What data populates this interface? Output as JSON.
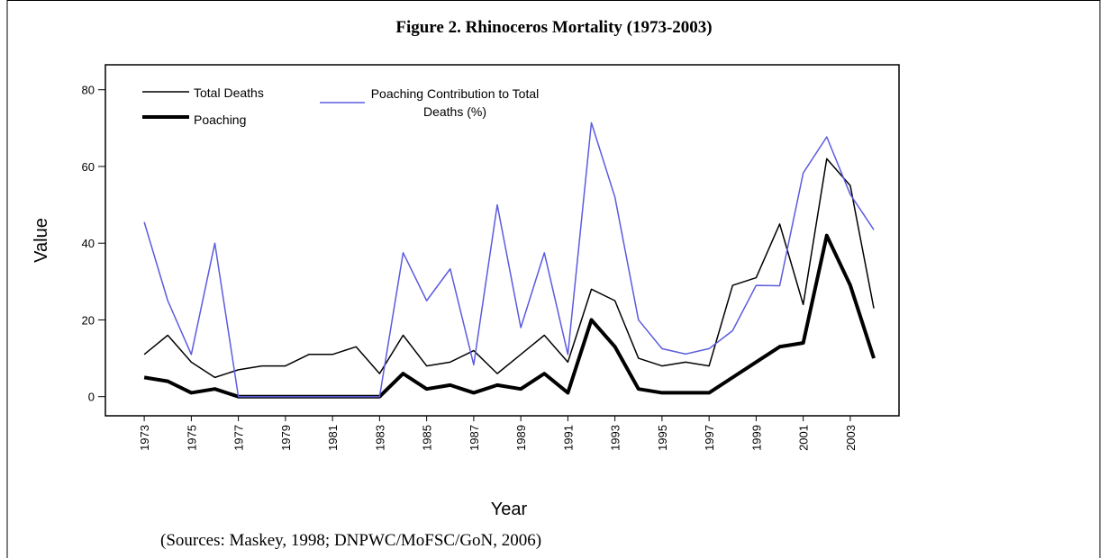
{
  "chart_data": {
    "type": "line",
    "title": "Figure 2. Rhinoceros Mortality (1973-2003)",
    "x_label": "Year",
    "y_label": "Value",
    "source": "(Sources: Maskey, 1998; DNPWC/MoFSC/GoN, 2006)",
    "x": [
      1973,
      1974,
      1975,
      1976,
      1977,
      1978,
      1979,
      1980,
      1981,
      1982,
      1983,
      1984,
      1985,
      1986,
      1987,
      1988,
      1989,
      1990,
      1991,
      1992,
      1993,
      1994,
      1995,
      1996,
      1997,
      1998,
      1999,
      2000,
      2001,
      2002,
      2003,
      2004
    ],
    "series": [
      {
        "name": "Total Deaths",
        "color": "#000000",
        "width": 1.5,
        "values": [
          11,
          16,
          9,
          5,
          7,
          8,
          8,
          11,
          11,
          13,
          6,
          16,
          8,
          9,
          12,
          6,
          11,
          16,
          9,
          28,
          25,
          10,
          8,
          9,
          8,
          29,
          31,
          45,
          24,
          62,
          55,
          23
        ]
      },
      {
        "name": "Poaching",
        "color": "#000000",
        "width": 4,
        "values": [
          5,
          4,
          1,
          2,
          0,
          0,
          0,
          0,
          0,
          0,
          0,
          6,
          2,
          3,
          1,
          3,
          2,
          6,
          1,
          20,
          13,
          2,
          1,
          1,
          1,
          5,
          9,
          13,
          14,
          42,
          29,
          10
        ]
      },
      {
        "name": "Poaching Contribution to Total Deaths (%)",
        "color": "#5b5bdf",
        "width": 1.5,
        "values": [
          45.5,
          25,
          11,
          40,
          0,
          0,
          0,
          0,
          0,
          0,
          0,
          37.5,
          25,
          33.3,
          8.3,
          50,
          18,
          37.5,
          11,
          71.4,
          52,
          20,
          12.5,
          11.1,
          12.5,
          17.2,
          29,
          28.9,
          58.3,
          67.7,
          52.7,
          43.5
        ]
      }
    ],
    "xlim": [
      1971.35,
      2005.07
    ],
    "xticks": [
      1973,
      1975,
      1977,
      1979,
      1981,
      1983,
      1985,
      1987,
      1989,
      1991,
      1993,
      1995,
      1997,
      1999,
      2001,
      2003
    ],
    "ylim": [
      -5,
      86.5
    ],
    "yticks": [
      0,
      20,
      40,
      60,
      80
    ],
    "grid": false
  }
}
